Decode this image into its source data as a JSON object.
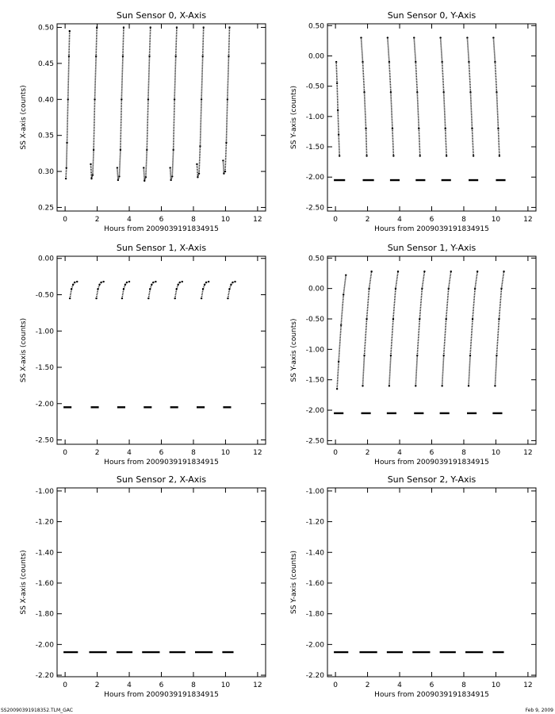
{
  "footer": {
    "left": "SS20090391918352.TLM_GAC",
    "right": "Feb  9, 2009"
  },
  "chart_data": [
    {
      "type": "scatter",
      "title": "Sun Sensor 0, X-Axis",
      "xlabel": "Hours from 2009039191834915",
      "ylabel": "SS X-axis (counts)",
      "xlim": [
        -0.5,
        12.5
      ],
      "ylim": [
        0.245,
        0.505
      ],
      "xticks": [
        0,
        2,
        4,
        6,
        8,
        10,
        12
      ],
      "xtick_labels": [
        "0",
        "2",
        "4",
        "6",
        "8",
        "10",
        "12"
      ],
      "yticks": [
        0.25,
        0.3,
        0.35,
        0.4,
        0.45,
        0.5
      ],
      "ytick_labels": [
        "0.25",
        "0.30",
        "0.35",
        "0.40",
        "0.45",
        "0.50"
      ],
      "series": [
        {
          "points": [
            [
              0.05,
              0.29
            ],
            [
              0.08,
              0.305
            ],
            [
              0.12,
              0.34
            ],
            [
              0.18,
              0.4
            ],
            [
              0.24,
              0.46
            ],
            [
              0.28,
              0.495
            ],
            [
              1.6,
              0.31
            ],
            [
              1.65,
              0.29
            ],
            [
              1.72,
              0.295
            ],
            [
              1.78,
              0.33
            ],
            [
              1.85,
              0.4
            ],
            [
              1.93,
              0.46
            ],
            [
              1.98,
              0.5
            ],
            [
              3.25,
              0.305
            ],
            [
              3.3,
              0.288
            ],
            [
              3.38,
              0.293
            ],
            [
              3.45,
              0.33
            ],
            [
              3.52,
              0.4
            ],
            [
              3.6,
              0.46
            ],
            [
              3.65,
              0.5
            ],
            [
              4.9,
              0.305
            ],
            [
              4.95,
              0.287
            ],
            [
              5.03,
              0.292
            ],
            [
              5.1,
              0.33
            ],
            [
              5.18,
              0.4
            ],
            [
              5.26,
              0.46
            ],
            [
              5.32,
              0.5
            ],
            [
              6.55,
              0.305
            ],
            [
              6.6,
              0.288
            ],
            [
              6.68,
              0.293
            ],
            [
              6.75,
              0.33
            ],
            [
              6.82,
              0.4
            ],
            [
              6.9,
              0.46
            ],
            [
              6.96,
              0.5
            ],
            [
              8.22,
              0.31
            ],
            [
              8.27,
              0.292
            ],
            [
              8.35,
              0.297
            ],
            [
              8.42,
              0.335
            ],
            [
              8.5,
              0.4
            ],
            [
              8.58,
              0.46
            ],
            [
              8.63,
              0.5
            ],
            [
              9.85,
              0.315
            ],
            [
              9.9,
              0.297
            ],
            [
              9.98,
              0.3
            ],
            [
              10.05,
              0.34
            ],
            [
              10.12,
              0.4
            ],
            [
              10.2,
              0.46
            ],
            [
              10.25,
              0.5
            ]
          ]
        }
      ]
    },
    {
      "type": "scatter",
      "title": "Sun Sensor 0, Y-Axis",
      "xlabel": "Hours from 2009039191834915",
      "ylabel": "SS Y-axis (counts)",
      "xlim": [
        -0.5,
        12.5
      ],
      "ylim": [
        -2.56,
        0.53
      ],
      "xticks": [
        0,
        2,
        4,
        6,
        8,
        10,
        12
      ],
      "xtick_labels": [
        "0",
        "2",
        "4",
        "6",
        "8",
        "10",
        "12"
      ],
      "yticks": [
        0.5,
        0.0,
        -0.5,
        -1.0,
        -1.5,
        -2.0,
        -2.5
      ],
      "ytick_labels": [
        "0.50",
        "0.00",
        "-0.50",
        "-1.00",
        "-1.50",
        "-2.00",
        "-2.50"
      ],
      "series": [
        {
          "points": [
            [
              0.05,
              -0.1
            ],
            [
              0.1,
              -0.45
            ],
            [
              0.15,
              -0.9
            ],
            [
              0.2,
              -1.3
            ],
            [
              0.25,
              -1.65
            ],
            [
              1.6,
              0.3
            ],
            [
              1.7,
              -0.1
            ],
            [
              1.8,
              -0.6
            ],
            [
              1.9,
              -1.2
            ],
            [
              1.95,
              -1.65
            ],
            [
              3.25,
              0.3
            ],
            [
              3.35,
              -0.1
            ],
            [
              3.45,
              -0.6
            ],
            [
              3.55,
              -1.2
            ],
            [
              3.62,
              -1.65
            ],
            [
              4.9,
              0.3
            ],
            [
              5.0,
              -0.1
            ],
            [
              5.1,
              -0.6
            ],
            [
              5.2,
              -1.2
            ],
            [
              5.27,
              -1.65
            ],
            [
              6.55,
              0.3
            ],
            [
              6.65,
              -0.1
            ],
            [
              6.75,
              -0.6
            ],
            [
              6.85,
              -1.2
            ],
            [
              6.92,
              -1.65
            ],
            [
              8.22,
              0.3
            ],
            [
              8.32,
              -0.1
            ],
            [
              8.42,
              -0.6
            ],
            [
              8.52,
              -1.2
            ],
            [
              8.6,
              -1.65
            ],
            [
              9.85,
              0.3
            ],
            [
              9.95,
              -0.1
            ],
            [
              10.05,
              -0.6
            ],
            [
              10.15,
              -1.2
            ],
            [
              10.22,
              -1.65
            ]
          ]
        },
        {
          "segments": [
            [
              -0.1,
              0.6
            ],
            [
              1.7,
              2.4
            ],
            [
              3.4,
              4.0
            ],
            [
              5.0,
              5.6
            ],
            [
              6.6,
              7.2
            ],
            [
              8.3,
              8.9
            ],
            [
              10.0,
              10.6
            ]
          ],
          "y": -2.05
        }
      ]
    },
    {
      "type": "scatter",
      "title": "Sun Sensor 1, X-Axis",
      "xlabel": "Hours from 2009039191834915",
      "ylabel": "SS X-axis (counts)",
      "xlim": [
        -0.5,
        12.5
      ],
      "ylim": [
        -2.56,
        0.03
      ],
      "xticks": [
        0,
        2,
        4,
        6,
        8,
        10,
        12
      ],
      "xtick_labels": [
        "0",
        "2",
        "4",
        "6",
        "8",
        "10",
        "12"
      ],
      "yticks": [
        0.0,
        -0.5,
        -1.0,
        -1.5,
        -2.0,
        -2.5
      ],
      "ytick_labels": [
        "0.00",
        "-0.50",
        "-1.00",
        "-1.50",
        "-2.00",
        "-2.50"
      ],
      "series": [
        {
          "points": [
            [
              0.3,
              -0.55
            ],
            [
              0.4,
              -0.42
            ],
            [
              0.5,
              -0.36
            ],
            [
              0.6,
              -0.33
            ],
            [
              0.75,
              -0.32
            ],
            [
              1.95,
              -0.55
            ],
            [
              2.05,
              -0.42
            ],
            [
              2.15,
              -0.36
            ],
            [
              2.25,
              -0.33
            ],
            [
              2.4,
              -0.32
            ],
            [
              3.55,
              -0.55
            ],
            [
              3.65,
              -0.42
            ],
            [
              3.75,
              -0.36
            ],
            [
              3.85,
              -0.33
            ],
            [
              4.0,
              -0.32
            ],
            [
              5.2,
              -0.55
            ],
            [
              5.3,
              -0.42
            ],
            [
              5.4,
              -0.36
            ],
            [
              5.5,
              -0.33
            ],
            [
              5.65,
              -0.32
            ],
            [
              6.85,
              -0.55
            ],
            [
              6.95,
              -0.42
            ],
            [
              7.05,
              -0.36
            ],
            [
              7.15,
              -0.33
            ],
            [
              7.3,
              -0.32
            ],
            [
              8.5,
              -0.55
            ],
            [
              8.6,
              -0.42
            ],
            [
              8.7,
              -0.36
            ],
            [
              8.8,
              -0.33
            ],
            [
              8.95,
              -0.32
            ],
            [
              10.15,
              -0.55
            ],
            [
              10.25,
              -0.42
            ],
            [
              10.35,
              -0.36
            ],
            [
              10.45,
              -0.33
            ],
            [
              10.6,
              -0.32
            ]
          ]
        },
        {
          "segments": [
            [
              -0.1,
              0.4
            ],
            [
              1.6,
              2.1
            ],
            [
              3.25,
              3.75
            ],
            [
              4.9,
              5.4
            ],
            [
              6.55,
              7.05
            ],
            [
              8.2,
              8.7
            ],
            [
              9.85,
              10.35
            ]
          ],
          "y": -2.05
        }
      ]
    },
    {
      "type": "scatter",
      "title": "Sun Sensor 1, Y-Axis",
      "xlabel": "Hours from 2009039191834915",
      "ylabel": "SS Y-axis (counts)",
      "xlim": [
        -0.5,
        12.5
      ],
      "ylim": [
        -2.56,
        0.53
      ],
      "xticks": [
        0,
        2,
        4,
        6,
        8,
        10,
        12
      ],
      "xtick_labels": [
        "0",
        "2",
        "4",
        "6",
        "8",
        "10",
        "12"
      ],
      "yticks": [
        0.5,
        0.0,
        -0.5,
        -1.0,
        -1.5,
        -2.0,
        -2.5
      ],
      "ytick_labels": [
        "0.50",
        "0.00",
        "-0.50",
        "-1.00",
        "-1.50",
        "-2.00",
        "-2.50"
      ],
      "series": [
        {
          "points": [
            [
              0.1,
              -1.65
            ],
            [
              0.2,
              -1.2
            ],
            [
              0.35,
              -0.6
            ],
            [
              0.5,
              -0.1
            ],
            [
              0.65,
              0.22
            ],
            [
              1.7,
              -1.6
            ],
            [
              1.8,
              -1.1
            ],
            [
              1.95,
              -0.5
            ],
            [
              2.1,
              0.0
            ],
            [
              2.25,
              0.28
            ],
            [
              3.35,
              -1.6
            ],
            [
              3.45,
              -1.1
            ],
            [
              3.6,
              -0.5
            ],
            [
              3.75,
              0.0
            ],
            [
              3.9,
              0.28
            ],
            [
              5.0,
              -1.6
            ],
            [
              5.1,
              -1.1
            ],
            [
              5.25,
              -0.5
            ],
            [
              5.4,
              0.0
            ],
            [
              5.55,
              0.28
            ],
            [
              6.65,
              -1.6
            ],
            [
              6.75,
              -1.1
            ],
            [
              6.9,
              -0.5
            ],
            [
              7.05,
              0.0
            ],
            [
              7.2,
              0.28
            ],
            [
              8.3,
              -1.6
            ],
            [
              8.4,
              -1.1
            ],
            [
              8.55,
              -0.5
            ],
            [
              8.7,
              0.0
            ],
            [
              8.85,
              0.28
            ],
            [
              9.95,
              -1.6
            ],
            [
              10.05,
              -1.1
            ],
            [
              10.2,
              -0.5
            ],
            [
              10.35,
              0.0
            ],
            [
              10.5,
              0.28
            ]
          ]
        },
        {
          "segments": [
            [
              -0.1,
              0.5
            ],
            [
              1.6,
              2.2
            ],
            [
              3.2,
              3.8
            ],
            [
              4.9,
              5.5
            ],
            [
              6.5,
              7.1
            ],
            [
              8.2,
              8.8
            ],
            [
              9.8,
              10.4
            ]
          ],
          "y": -2.05
        }
      ]
    },
    {
      "type": "scatter",
      "title": "Sun Sensor 2, X-Axis",
      "xlabel": "Hours from 2009039191834915",
      "ylabel": "SS X-axis (counts)",
      "xlim": [
        -0.5,
        12.5
      ],
      "ylim": [
        -2.21,
        -0.98
      ],
      "xticks": [
        0,
        2,
        4,
        6,
        8,
        10,
        12
      ],
      "xtick_labels": [
        "0",
        "2",
        "4",
        "6",
        "8",
        "10",
        "12"
      ],
      "yticks": [
        -1.0,
        -1.2,
        -1.4,
        -1.6,
        -1.8,
        -2.0,
        -2.2
      ],
      "ytick_labels": [
        "-1.00",
        "-1.20",
        "-1.40",
        "-1.60",
        "-1.80",
        "-2.00",
        "-2.20"
      ],
      "series": [
        {
          "segments": [
            [
              -0.1,
              0.8
            ],
            [
              1.5,
              2.6
            ],
            [
              3.2,
              4.2
            ],
            [
              4.8,
              5.9
            ],
            [
              6.5,
              7.5
            ],
            [
              8.1,
              9.2
            ],
            [
              9.8,
              10.5
            ]
          ],
          "y": -2.05
        }
      ]
    },
    {
      "type": "scatter",
      "title": "Sun Sensor 2, Y-Axis",
      "xlabel": "Hours from 2009039191834915",
      "ylabel": "SS Y-axis (counts)",
      "xlim": [
        -0.5,
        12.5
      ],
      "ylim": [
        -2.21,
        -0.98
      ],
      "xticks": [
        0,
        2,
        4,
        6,
        8,
        10,
        12
      ],
      "xtick_labels": [
        "0",
        "2",
        "4",
        "6",
        "8",
        "10",
        "12"
      ],
      "yticks": [
        -1.0,
        -1.2,
        -1.4,
        -1.6,
        -1.8,
        -2.0,
        -2.2
      ],
      "ytick_labels": [
        "-1.00",
        "-1.20",
        "-1.40",
        "-1.60",
        "-1.80",
        "-2.00",
        "-2.20"
      ],
      "series": [
        {
          "segments": [
            [
              -0.1,
              0.8
            ],
            [
              1.5,
              2.6
            ],
            [
              3.2,
              4.2
            ],
            [
              4.8,
              5.9
            ],
            [
              6.5,
              7.5
            ],
            [
              8.1,
              9.2
            ],
            [
              9.8,
              10.5
            ]
          ],
          "y": -2.05
        }
      ]
    }
  ]
}
